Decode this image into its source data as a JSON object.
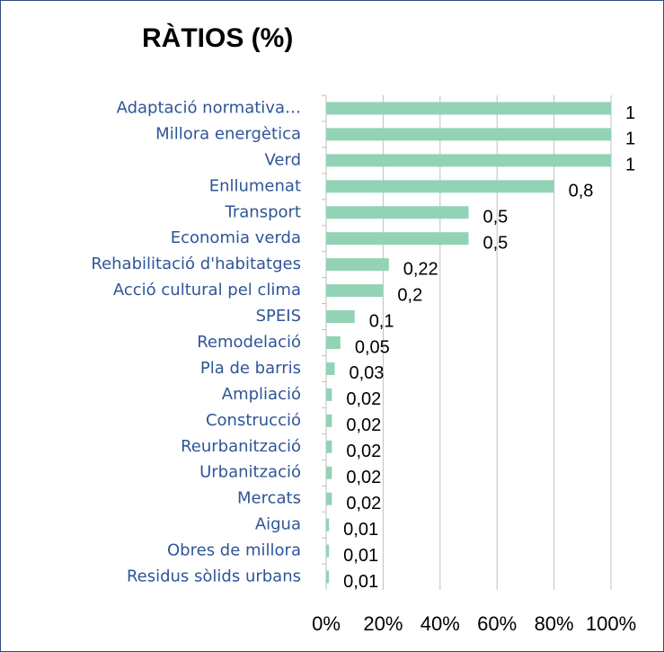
{
  "chart_data": {
    "type": "hbar",
    "title": "RÀTIOS (%)",
    "categories": [
      "Adaptació normativa…",
      "Millora energètica",
      "Verd",
      "Enllumenat",
      "Transport",
      "Economia verda",
      "Rehabilitació d'habitatges",
      "Acció cultural pel clima",
      "SPEIS",
      "Remodelació",
      "Pla de barris",
      "Ampliació",
      "Construcció",
      "Reurbanització",
      "Urbanització",
      "Mercats",
      "Aigua",
      "Obres de millora",
      "Residus sòlids urbans"
    ],
    "values": [
      1,
      1,
      1,
      0.8,
      0.5,
      0.5,
      0.22,
      0.2,
      0.1,
      0.05,
      0.03,
      0.02,
      0.02,
      0.02,
      0.02,
      0.02,
      0.01,
      0.01,
      0.01
    ],
    "value_labels": [
      "1",
      "1",
      "1",
      "0,8",
      "0,5",
      "0,5",
      "0,22",
      "0,2",
      "0,1",
      "0,05",
      "0,03",
      "0,02",
      "0,02",
      "0,02",
      "0,02",
      "0,02",
      "0,01",
      "0,01",
      "0,01"
    ],
    "color": "#92d3b5",
    "xlim": [
      0,
      1
    ],
    "xticks": [
      {
        "value": 0,
        "label": "0%"
      },
      {
        "value": 0.2,
        "label": "20%"
      },
      {
        "value": 0.4,
        "label": "40%"
      },
      {
        "value": 0.6,
        "label": "60%"
      },
      {
        "value": 0.8,
        "label": "80%"
      },
      {
        "value": 1,
        "label": "100%"
      }
    ],
    "grid": true
  }
}
